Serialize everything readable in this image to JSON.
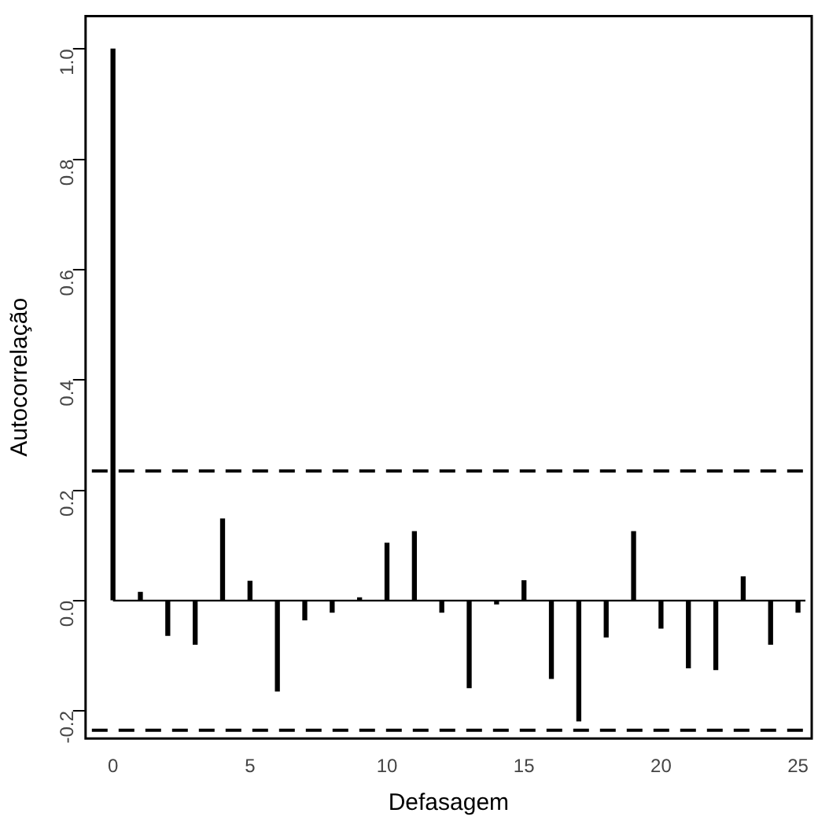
{
  "chart_data": {
    "type": "bar",
    "xlabel": "Defasagem",
    "ylabel": "Autocorrelação",
    "x": [
      0,
      1,
      2,
      3,
      4,
      5,
      6,
      7,
      8,
      9,
      10,
      11,
      12,
      13,
      14,
      15,
      16,
      17,
      18,
      19,
      20,
      21,
      22,
      23,
      24,
      25
    ],
    "values": [
      1.0,
      0.015,
      -0.063,
      -0.079,
      0.148,
      0.035,
      -0.164,
      -0.035,
      -0.021,
      0.005,
      0.104,
      0.125,
      -0.021,
      -0.158,
      -0.006,
      0.036,
      -0.141,
      -0.218,
      -0.066,
      0.125,
      -0.05,
      -0.122,
      -0.125,
      0.043,
      -0.079,
      -0.021
    ],
    "color": "#000000",
    "xlim": [
      -1,
      25.5
    ],
    "xticks": [
      0,
      5,
      10,
      15,
      20,
      25
    ],
    "ylim": [
      -0.25,
      1.06
    ],
    "yticks": [
      {
        "value": -0.2,
        "label": "-0.2"
      },
      {
        "value": 0,
        "label": "0.0"
      },
      {
        "value": 0.2,
        "label": "0.2"
      },
      {
        "value": 0.4,
        "label": "0.4"
      },
      {
        "value": 0.6,
        "label": "0.6"
      },
      {
        "value": 0.8,
        "label": "0.8"
      },
      {
        "value": 1,
        "label": "1.0"
      }
    ],
    "ref_lines": [
      {
        "axis": "y",
        "value": 0.235,
        "line_style": "dashed",
        "color": "#000000"
      },
      {
        "axis": "y",
        "value": -0.235,
        "line_style": "dashed",
        "color": "#000000"
      },
      {
        "axis": "y",
        "value": 0,
        "line_style": "solid",
        "color": "#000000"
      }
    ],
    "grid": false,
    "legend": false
  }
}
